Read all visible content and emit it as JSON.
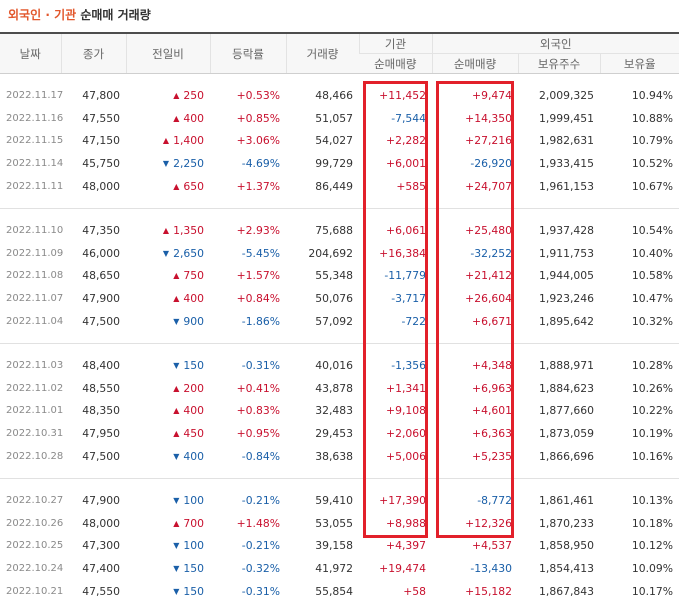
{
  "title": {
    "foreign": "외국인",
    "separator": "·",
    "institution": "기관",
    "rest": "순매매 거래량"
  },
  "headers": {
    "date": "날짜",
    "close": "종가",
    "diff": "전일비",
    "rate": "등락률",
    "volume": "거래량",
    "inst_group": "기관",
    "inst_net": "순매매량",
    "foreign_group": "외국인",
    "foreign_net": "순매매량",
    "foreign_holding": "보유주수",
    "foreign_ratio": "보유율"
  },
  "colors": {
    "up": "#c8102e",
    "down": "#1a5fa8",
    "highlight": "#e2202a",
    "title_accent": "#e2572c"
  },
  "groups": [
    [
      {
        "date": "2022.11.17",
        "close": "47,800",
        "dir": "up",
        "diff": "250",
        "rate": "+0.53%",
        "volume": "48,466",
        "inst": "+11,452",
        "fnet": "+9,474",
        "fhold": "2,009,325",
        "fratio": "10.94%"
      },
      {
        "date": "2022.11.16",
        "close": "47,550",
        "dir": "up",
        "diff": "400",
        "rate": "+0.85%",
        "volume": "51,057",
        "inst": "-7,544",
        "fnet": "+14,350",
        "fhold": "1,999,451",
        "fratio": "10.88%"
      },
      {
        "date": "2022.11.15",
        "close": "47,150",
        "dir": "up",
        "diff": "1,400",
        "rate": "+3.06%",
        "volume": "54,027",
        "inst": "+2,282",
        "fnet": "+27,216",
        "fhold": "1,982,631",
        "fratio": "10.79%"
      },
      {
        "date": "2022.11.14",
        "close": "45,750",
        "dir": "down",
        "diff": "2,250",
        "rate": "-4.69%",
        "volume": "99,729",
        "inst": "+6,001",
        "fnet": "-26,920",
        "fhold": "1,933,415",
        "fratio": "10.52%"
      },
      {
        "date": "2022.11.11",
        "close": "48,000",
        "dir": "up",
        "diff": "650",
        "rate": "+1.37%",
        "volume": "86,449",
        "inst": "+585",
        "fnet": "+24,707",
        "fhold": "1,961,153",
        "fratio": "10.67%"
      }
    ],
    [
      {
        "date": "2022.11.10",
        "close": "47,350",
        "dir": "up",
        "diff": "1,350",
        "rate": "+2.93%",
        "volume": "75,688",
        "inst": "+6,061",
        "fnet": "+25,480",
        "fhold": "1,937,428",
        "fratio": "10.54%"
      },
      {
        "date": "2022.11.09",
        "close": "46,000",
        "dir": "down",
        "diff": "2,650",
        "rate": "-5.45%",
        "volume": "204,692",
        "inst": "+16,384",
        "fnet": "-32,252",
        "fhold": "1,911,753",
        "fratio": "10.40%"
      },
      {
        "date": "2022.11.08",
        "close": "48,650",
        "dir": "up",
        "diff": "750",
        "rate": "+1.57%",
        "volume": "55,348",
        "inst": "-11,779",
        "fnet": "+21,412",
        "fhold": "1,944,005",
        "fratio": "10.58%"
      },
      {
        "date": "2022.11.07",
        "close": "47,900",
        "dir": "up",
        "diff": "400",
        "rate": "+0.84%",
        "volume": "50,076",
        "inst": "-3,717",
        "fnet": "+26,604",
        "fhold": "1,923,246",
        "fratio": "10.47%"
      },
      {
        "date": "2022.11.04",
        "close": "47,500",
        "dir": "down",
        "diff": "900",
        "rate": "-1.86%",
        "volume": "57,092",
        "inst": "-722",
        "fnet": "+6,671",
        "fhold": "1,895,642",
        "fratio": "10.32%"
      }
    ],
    [
      {
        "date": "2022.11.03",
        "close": "48,400",
        "dir": "down",
        "diff": "150",
        "rate": "-0.31%",
        "volume": "40,016",
        "inst": "-1,356",
        "fnet": "+4,348",
        "fhold": "1,888,971",
        "fratio": "10.28%"
      },
      {
        "date": "2022.11.02",
        "close": "48,550",
        "dir": "up",
        "diff": "200",
        "rate": "+0.41%",
        "volume": "43,878",
        "inst": "+1,341",
        "fnet": "+6,963",
        "fhold": "1,884,623",
        "fratio": "10.26%"
      },
      {
        "date": "2022.11.01",
        "close": "48,350",
        "dir": "up",
        "diff": "400",
        "rate": "+0.83%",
        "volume": "32,483",
        "inst": "+9,108",
        "fnet": "+4,601",
        "fhold": "1,877,660",
        "fratio": "10.22%"
      },
      {
        "date": "2022.10.31",
        "close": "47,950",
        "dir": "up",
        "diff": "450",
        "rate": "+0.95%",
        "volume": "29,453",
        "inst": "+2,060",
        "fnet": "+6,363",
        "fhold": "1,873,059",
        "fratio": "10.19%"
      },
      {
        "date": "2022.10.28",
        "close": "47,500",
        "dir": "down",
        "diff": "400",
        "rate": "-0.84%",
        "volume": "38,638",
        "inst": "+5,006",
        "fnet": "+5,235",
        "fhold": "1,866,696",
        "fratio": "10.16%"
      }
    ],
    [
      {
        "date": "2022.10.27",
        "close": "47,900",
        "dir": "down",
        "diff": "100",
        "rate": "-0.21%",
        "volume": "59,410",
        "inst": "+17,390",
        "fnet": "-8,772",
        "fhold": "1,861,461",
        "fratio": "10.13%"
      },
      {
        "date": "2022.10.26",
        "close": "48,000",
        "dir": "up",
        "diff": "700",
        "rate": "+1.48%",
        "volume": "53,055",
        "inst": "+8,988",
        "fnet": "+12,326",
        "fhold": "1,870,233",
        "fratio": "10.18%"
      },
      {
        "date": "2022.10.25",
        "close": "47,300",
        "dir": "down",
        "diff": "100",
        "rate": "-0.21%",
        "volume": "39,158",
        "inst": "+4,397",
        "fnet": "+4,537",
        "fhold": "1,858,950",
        "fratio": "10.12%"
      },
      {
        "date": "2022.10.24",
        "close": "47,400",
        "dir": "down",
        "diff": "150",
        "rate": "-0.32%",
        "volume": "41,972",
        "inst": "+19,474",
        "fnet": "-13,430",
        "fhold": "1,854,413",
        "fratio": "10.09%"
      },
      {
        "date": "2022.10.21",
        "close": "47,550",
        "dir": "down",
        "diff": "150",
        "rate": "-0.31%",
        "volume": "55,854",
        "inst": "+58",
        "fnet": "+15,182",
        "fhold": "1,867,843",
        "fratio": "10.17%"
      }
    ]
  ]
}
